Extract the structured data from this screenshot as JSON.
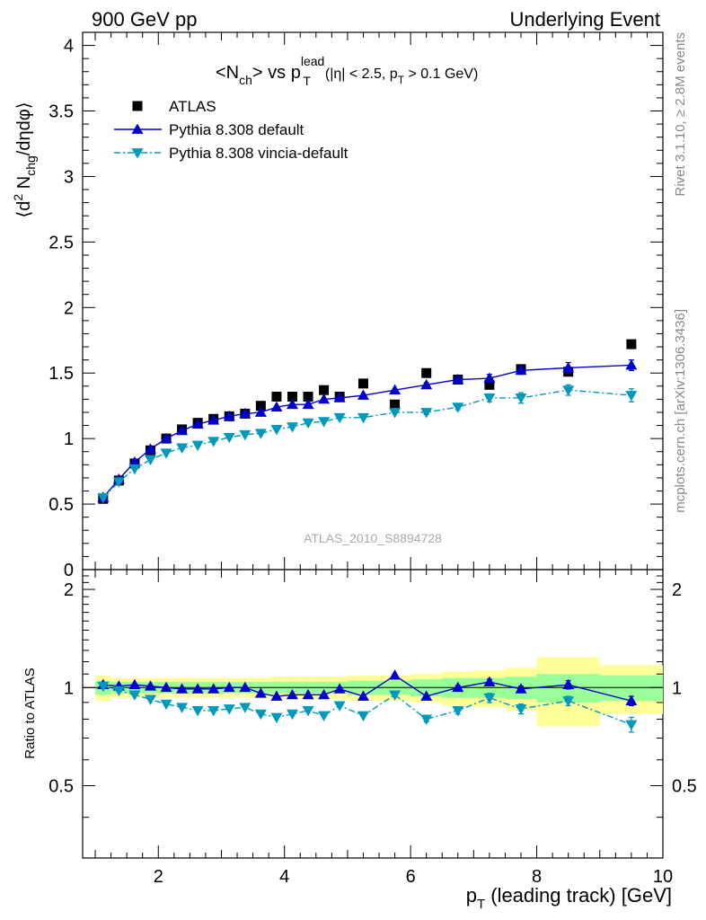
{
  "header": {
    "left": "900 GeV pp",
    "right": "Underlying Event"
  },
  "side_text": {
    "rivet": "Rivet 3.1.10, ≥ 2.8M events",
    "mcplots": "mcplots.cern.ch [arXiv:1306.3436]"
  },
  "plot_title": {
    "main": "<N",
    "main_sub": "ch",
    "main_mid": "> vs p",
    "main_sup": "lead",
    "main_sub2": "T",
    "cuts_a": "(|η| < 2.5, p",
    "cuts_sub": "T",
    "cuts_b": " > 0.1 GeV)"
  },
  "watermark": "ATLAS_2010_S8894728",
  "y_axis_label": {
    "a": "⟨d",
    "sup": "2",
    "b": " N",
    "sub": "chg",
    "c": "/dηdφ⟩"
  },
  "ratio_axis_label": "Ratio to ATLAS",
  "x_axis_label": {
    "a": "p",
    "sub": "T",
    "b": " (leading track) [GeV]"
  },
  "legend": [
    {
      "label": "ATLAS",
      "marker": "square",
      "color": "#000000"
    },
    {
      "label": "Pythia 8.308 default",
      "marker": "triangle-up",
      "color": "#0000cc"
    },
    {
      "label": "Pythia 8.308 vincia-default",
      "marker": "triangle-down",
      "color": "#0099bb"
    }
  ],
  "chart_data": [
    {
      "type": "scatter",
      "panel": "main",
      "xlim": [
        0.8,
        10
      ],
      "ylim": [
        0,
        4.1
      ],
      "x_ticks": [
        2,
        4,
        6,
        8,
        10
      ],
      "y_ticks": [
        0,
        0.5,
        1,
        1.5,
        2,
        2.5,
        3,
        3.5,
        4
      ],
      "y_tick_labels": [
        "0",
        "0.5",
        "1",
        "1.5",
        "2",
        "2.5",
        "3",
        "3.5",
        "4"
      ],
      "series": [
        {
          "name": "ATLAS",
          "x": [
            1.125,
            1.375,
            1.625,
            1.875,
            2.125,
            2.375,
            2.625,
            2.875,
            3.125,
            3.375,
            3.625,
            3.875,
            4.125,
            4.375,
            4.625,
            4.875,
            5.25,
            5.75,
            6.25,
            6.75,
            7.25,
            7.75,
            8.5,
            9.5
          ],
          "y": [
            0.54,
            0.68,
            0.81,
            0.91,
            1.0,
            1.07,
            1.12,
            1.15,
            1.17,
            1.19,
            1.25,
            1.32,
            1.32,
            1.32,
            1.37,
            1.32,
            1.42,
            1.26,
            1.5,
            1.45,
            1.41,
            1.53,
            1.51,
            1.72
          ]
        },
        {
          "name": "Pythia 8.308 default",
          "x": [
            1.125,
            1.375,
            1.625,
            1.875,
            2.125,
            2.375,
            2.625,
            2.875,
            3.125,
            3.375,
            3.625,
            3.875,
            4.125,
            4.375,
            4.625,
            4.875,
            5.25,
            5.75,
            6.25,
            6.75,
            7.25,
            7.75,
            8.5,
            9.5
          ],
          "y": [
            0.55,
            0.69,
            0.82,
            0.92,
            1.0,
            1.06,
            1.11,
            1.14,
            1.17,
            1.19,
            1.2,
            1.24,
            1.26,
            1.26,
            1.3,
            1.31,
            1.33,
            1.37,
            1.41,
            1.45,
            1.46,
            1.52,
            1.54,
            1.56
          ],
          "y_err": [
            0.01,
            0.01,
            0.01,
            0.01,
            0.01,
            0.01,
            0.01,
            0.01,
            0.01,
            0.01,
            0.01,
            0.01,
            0.01,
            0.01,
            0.01,
            0.01,
            0.01,
            0.01,
            0.015,
            0.02,
            0.03,
            0.03,
            0.04,
            0.04
          ]
        },
        {
          "name": "Pythia 8.308 vincia-default",
          "x": [
            1.125,
            1.375,
            1.625,
            1.875,
            2.125,
            2.375,
            2.625,
            2.875,
            3.125,
            3.375,
            3.625,
            3.875,
            4.125,
            4.375,
            4.625,
            4.875,
            5.25,
            5.75,
            6.25,
            6.75,
            7.25,
            7.75,
            8.5,
            9.5
          ],
          "y": [
            0.55,
            0.67,
            0.77,
            0.84,
            0.89,
            0.93,
            0.95,
            0.98,
            1.01,
            1.03,
            1.04,
            1.07,
            1.09,
            1.12,
            1.13,
            1.16,
            1.16,
            1.2,
            1.2,
            1.24,
            1.31,
            1.31,
            1.37,
            1.33
          ],
          "y_err": [
            0.01,
            0.01,
            0.01,
            0.01,
            0.01,
            0.01,
            0.01,
            0.01,
            0.01,
            0.01,
            0.01,
            0.01,
            0.01,
            0.01,
            0.01,
            0.01,
            0.01,
            0.01,
            0.015,
            0.02,
            0.03,
            0.04,
            0.04,
            0.05
          ]
        }
      ]
    },
    {
      "type": "line",
      "panel": "ratio",
      "xlabel": "p_T (leading track) [GeV]",
      "ylabel": "Ratio to ATLAS",
      "xlim": [
        0.8,
        10
      ],
      "ylim": [
        0.3,
        2.3
      ],
      "x_ticks": [
        2,
        4,
        6,
        8,
        10
      ],
      "x_tick_labels": [
        "2",
        "4",
        "6",
        "8",
        "10"
      ],
      "y_ticks": [
        0.5,
        1,
        2
      ],
      "y_tick_labels": [
        "0.5",
        "1",
        "2"
      ],
      "bands": {
        "bin_edges": [
          1.0,
          1.25,
          1.5,
          1.75,
          2.0,
          2.25,
          2.5,
          2.75,
          3.0,
          3.25,
          3.5,
          3.75,
          4.0,
          4.25,
          4.5,
          4.75,
          5.0,
          5.5,
          6.0,
          6.5,
          7.0,
          7.5,
          8.0,
          9.0,
          10.0
        ],
        "stat_half_width": [
          0.05,
          0.04,
          0.04,
          0.04,
          0.04,
          0.04,
          0.04,
          0.04,
          0.04,
          0.04,
          0.04,
          0.04,
          0.04,
          0.04,
          0.04,
          0.04,
          0.05,
          0.05,
          0.06,
          0.07,
          0.07,
          0.08,
          0.1,
          0.09
        ],
        "total_half_width": [
          0.09,
          0.07,
          0.07,
          0.07,
          0.07,
          0.07,
          0.07,
          0.07,
          0.07,
          0.07,
          0.07,
          0.08,
          0.08,
          0.08,
          0.08,
          0.08,
          0.09,
          0.09,
          0.1,
          0.12,
          0.13,
          0.15,
          0.24,
          0.17
        ]
      },
      "series": [
        {
          "name": "Pythia 8.308 default",
          "x": [
            1.125,
            1.375,
            1.625,
            1.875,
            2.125,
            2.375,
            2.625,
            2.875,
            3.125,
            3.375,
            3.625,
            3.875,
            4.125,
            4.375,
            4.625,
            4.875,
            5.25,
            5.75,
            6.25,
            6.75,
            7.25,
            7.75,
            8.5,
            9.5
          ],
          "y": [
            1.02,
            1.01,
            1.02,
            1.01,
            1.0,
            0.99,
            0.99,
            0.99,
            1.0,
            1.0,
            0.96,
            0.94,
            0.95,
            0.95,
            0.95,
            0.99,
            0.94,
            1.09,
            0.94,
            1.0,
            1.04,
            0.99,
            1.02,
            0.91
          ],
          "y_err": [
            0.01,
            0.01,
            0.01,
            0.01,
            0.01,
            0.01,
            0.01,
            0.01,
            0.01,
            0.01,
            0.01,
            0.01,
            0.01,
            0.01,
            0.01,
            0.01,
            0.01,
            0.01,
            0.01,
            0.015,
            0.02,
            0.02,
            0.03,
            0.03
          ]
        },
        {
          "name": "Pythia 8.308 vincia-default",
          "x": [
            1.125,
            1.375,
            1.625,
            1.875,
            2.125,
            2.375,
            2.625,
            2.875,
            3.125,
            3.375,
            3.625,
            3.875,
            4.125,
            4.375,
            4.625,
            4.875,
            5.25,
            5.75,
            6.25,
            6.75,
            7.25,
            7.75,
            8.5,
            9.5
          ],
          "y": [
            1.01,
            0.98,
            0.95,
            0.92,
            0.89,
            0.87,
            0.85,
            0.85,
            0.86,
            0.87,
            0.83,
            0.81,
            0.83,
            0.85,
            0.82,
            0.88,
            0.82,
            0.95,
            0.8,
            0.85,
            0.93,
            0.86,
            0.91,
            0.77
          ],
          "y_err": [
            0.01,
            0.01,
            0.01,
            0.01,
            0.01,
            0.01,
            0.01,
            0.01,
            0.01,
            0.01,
            0.01,
            0.01,
            0.01,
            0.01,
            0.01,
            0.01,
            0.01,
            0.01,
            0.015,
            0.02,
            0.03,
            0.03,
            0.03,
            0.04
          ]
        }
      ]
    }
  ]
}
